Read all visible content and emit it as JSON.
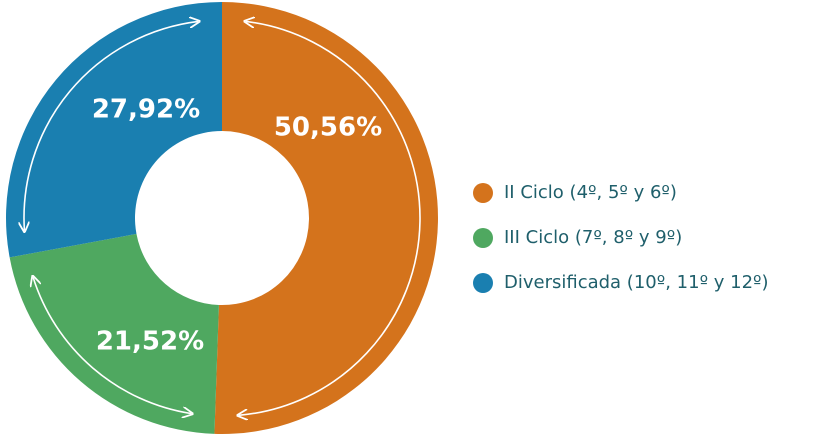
{
  "chart_data": {
    "type": "donut",
    "series": [
      {
        "name": "II Ciclo (4º, 5º y 6º)",
        "color": "#d4731c",
        "values": [
          50.56
        ],
        "value_labels": [
          "50,56%"
        ]
      },
      {
        "name": "III Ciclo (7º, 8º y 9º)",
        "color": "#4fa860",
        "values": [
          21.52
        ],
        "value_labels": [
          "21,52%"
        ]
      },
      {
        "name": "Diversificada (10º, 11º y 12º)",
        "color": "#1a7fb0",
        "values": [
          27.92
        ],
        "value_labels": [
          "27,92%"
        ]
      }
    ],
    "legend": "right"
  }
}
